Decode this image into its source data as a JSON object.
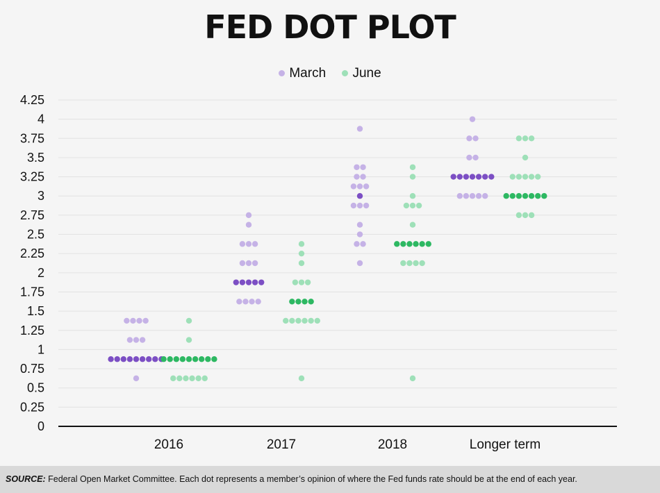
{
  "chart_data": {
    "type": "scatter",
    "title": "FED DOT PLOT",
    "categories": [
      "2016",
      "2017",
      "2018",
      "Longer term"
    ],
    "ylim": [
      0,
      4.25
    ],
    "yticks": [
      "0",
      "0.25",
      "0.5",
      "0.75",
      "1",
      "1.25",
      "1.5",
      "1.75",
      "2",
      "2.25",
      "2.5",
      "2.75",
      "3",
      "3.25",
      "3.5",
      "3.75",
      "4",
      "4.25"
    ],
    "grid": true,
    "legend_position": "top-center",
    "colors": {
      "march_light": "#c5b2e6",
      "march_dark": "#7c4fc4",
      "june_light": "#9ee0b8",
      "june_dark": "#2db862"
    },
    "series": [
      {
        "name": "March",
        "color": "#c5b2e6",
        "median_color": "#7c4fc4",
        "groups": [
          {
            "category": "2016",
            "median": 0.875,
            "levels": [
              {
                "y": 1.375,
                "count": 4
              },
              {
                "y": 1.125,
                "count": 3
              },
              {
                "y": 0.875,
                "count": 9
              },
              {
                "y": 0.625,
                "count": 1
              }
            ]
          },
          {
            "category": "2017",
            "median": 1.875,
            "levels": [
              {
                "y": 2.75,
                "count": 1
              },
              {
                "y": 2.625,
                "count": 1
              },
              {
                "y": 2.375,
                "count": 3
              },
              {
                "y": 2.125,
                "count": 3
              },
              {
                "y": 1.875,
                "count": 5
              },
              {
                "y": 1.625,
                "count": 4
              }
            ]
          },
          {
            "category": "2018",
            "median": 3.0,
            "levels": [
              {
                "y": 3.875,
                "count": 1
              },
              {
                "y": 3.375,
                "count": 2
              },
              {
                "y": 3.25,
                "count": 2
              },
              {
                "y": 3.125,
                "count": 3
              },
              {
                "y": 3.0,
                "count": 1
              },
              {
                "y": 2.875,
                "count": 3
              },
              {
                "y": 2.625,
                "count": 1
              },
              {
                "y": 2.5,
                "count": 1
              },
              {
                "y": 2.375,
                "count": 2
              },
              {
                "y": 2.125,
                "count": 1
              }
            ]
          },
          {
            "category": "Longer term",
            "median": 3.25,
            "levels": [
              {
                "y": 4.0,
                "count": 1
              },
              {
                "y": 3.75,
                "count": 2
              },
              {
                "y": 3.5,
                "count": 2
              },
              {
                "y": 3.25,
                "count": 7
              },
              {
                "y": 3.0,
                "count": 5
              }
            ]
          }
        ]
      },
      {
        "name": "June",
        "color": "#9ee0b8",
        "median_color": "#2db862",
        "groups": [
          {
            "category": "2016",
            "median": 0.875,
            "levels": [
              {
                "y": 1.375,
                "count": 1
              },
              {
                "y": 1.125,
                "count": 1
              },
              {
                "y": 0.875,
                "count": 9
              },
              {
                "y": 0.625,
                "count": 6
              }
            ]
          },
          {
            "category": "2017",
            "median": 1.625,
            "levels": [
              {
                "y": 2.375,
                "count": 1
              },
              {
                "y": 2.25,
                "count": 1
              },
              {
                "y": 2.125,
                "count": 1
              },
              {
                "y": 1.875,
                "count": 3
              },
              {
                "y": 1.625,
                "count": 4
              },
              {
                "y": 1.375,
                "count": 6
              },
              {
                "y": 0.625,
                "count": 1
              }
            ]
          },
          {
            "category": "2018",
            "median": 2.375,
            "levels": [
              {
                "y": 3.375,
                "count": 1
              },
              {
                "y": 3.25,
                "count": 1
              },
              {
                "y": 3.0,
                "count": 1
              },
              {
                "y": 2.875,
                "count": 3
              },
              {
                "y": 2.625,
                "count": 1
              },
              {
                "y": 2.375,
                "count": 6
              },
              {
                "y": 2.125,
                "count": 4
              },
              {
                "y": 0.625,
                "count": 1
              }
            ]
          },
          {
            "category": "Longer term",
            "median": 3.0,
            "levels": [
              {
                "y": 3.75,
                "count": 3
              },
              {
                "y": 3.5,
                "count": 1
              },
              {
                "y": 3.25,
                "count": 5
              },
              {
                "y": 3.0,
                "count": 7
              },
              {
                "y": 2.75,
                "count": 3
              }
            ]
          }
        ]
      }
    ]
  },
  "footer": {
    "source_label": "SOURCE:",
    "source_text": " Federal Open Market Committee. Each dot represents a member’s opinion of where the Fed funds rate should be at the end of each year."
  }
}
